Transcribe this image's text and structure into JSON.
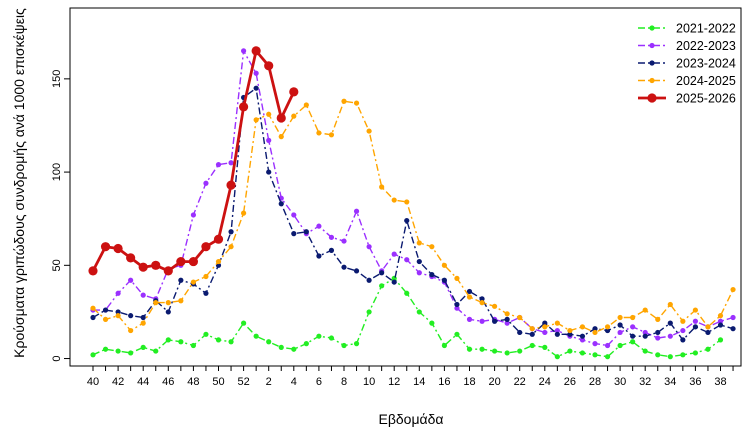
{
  "chart_data": {
    "type": "line",
    "title": "",
    "xlabel": "Εβδομάδα",
    "ylabel": "Κρούσματα γριπώδους συνδρομής ανά 1000 επισκέψεις",
    "ylim": [
      -4,
      188
    ],
    "yticks": [
      0,
      50,
      100,
      150
    ],
    "x_tick_labels": [
      "40",
      "42",
      "44",
      "46",
      "48",
      "50",
      "52",
      "2",
      "4",
      "6",
      "8",
      "10",
      "12",
      "14",
      "16",
      "18",
      "20",
      "22",
      "24",
      "26",
      "28",
      "30",
      "32",
      "34",
      "36",
      "38"
    ],
    "weeks": [
      40,
      41,
      42,
      43,
      44,
      45,
      46,
      47,
      48,
      49,
      50,
      51,
      52,
      1,
      2,
      3,
      4,
      5,
      6,
      7,
      8,
      9,
      10,
      11,
      12,
      13,
      14,
      15,
      16,
      17,
      18,
      19,
      20,
      21,
      22,
      23,
      24,
      25,
      26,
      27,
      28,
      29,
      30,
      31,
      32,
      33,
      34,
      35,
      36,
      37,
      38,
      39
    ],
    "legend_position": "top-right",
    "series": [
      {
        "name": "2021-2022",
        "color": "#22ee22",
        "dash": "dashdot",
        "thick": false,
        "values": [
          2,
          5,
          4,
          3,
          6,
          4,
          10,
          9,
          7,
          13,
          10,
          9,
          19,
          12,
          9,
          6,
          5,
          8,
          12,
          11,
          7,
          8,
          25,
          39,
          43,
          35,
          25,
          19,
          7,
          13,
          5,
          5,
          4,
          3,
          4,
          7,
          6,
          1,
          4,
          3,
          2,
          1,
          7,
          9,
          4,
          2,
          1,
          2,
          3,
          5,
          10,
          null
        ]
      },
      {
        "name": "2022-2023",
        "color": "#9b30ff",
        "dash": "dashdot",
        "thick": false,
        "values": [
          26,
          26,
          35,
          42,
          34,
          32,
          48,
          50,
          77,
          94,
          104,
          105,
          165,
          153,
          117,
          86,
          77,
          67,
          71,
          65,
          63,
          79,
          60,
          47,
          56,
          53,
          46,
          44,
          41,
          27,
          21,
          20,
          21,
          19,
          22,
          16,
          14,
          15,
          12,
          10,
          8,
          7,
          14,
          17,
          14,
          11,
          12,
          15,
          20,
          17,
          20,
          22
        ]
      },
      {
        "name": "2023-2024",
        "color": "#0a1a70",
        "dash": "dashdot",
        "thick": false,
        "values": [
          22,
          26,
          25,
          23,
          22,
          31,
          25,
          42,
          40,
          35,
          50,
          68,
          140,
          145,
          100,
          83,
          67,
          68,
          55,
          58,
          49,
          47,
          42,
          46,
          41,
          74,
          52,
          45,
          42,
          29,
          36,
          32,
          20,
          21,
          14,
          13,
          19,
          13,
          13,
          12,
          16,
          15,
          18,
          12,
          12,
          14,
          19,
          10,
          17,
          14,
          18,
          16
        ]
      },
      {
        "name": "2024-2025",
        "color": "#ffa500",
        "dash": "dashdot",
        "thick": false,
        "values": [
          27,
          21,
          23,
          15,
          19,
          30,
          30,
          31,
          41,
          44,
          52,
          60,
          78,
          128,
          131,
          119,
          130,
          136,
          121,
          120,
          138,
          137,
          122,
          92,
          85,
          84,
          62,
          60,
          50,
          43,
          33,
          30,
          28,
          24,
          22,
          16,
          17,
          19,
          15,
          17,
          14,
          17,
          22,
          22,
          26,
          21,
          29,
          20,
          26,
          17,
          23,
          37
        ]
      },
      {
        "name": "2025-2026",
        "color": "#cc1111",
        "dash": "solid",
        "thick": true,
        "values": [
          47,
          60,
          59,
          54,
          49,
          50,
          47,
          52,
          52,
          60,
          64,
          93,
          135,
          165,
          157,
          129,
          143,
          null,
          null,
          null,
          null,
          null,
          null,
          null,
          null,
          null,
          null,
          null,
          null,
          null,
          null,
          null,
          null,
          null,
          null,
          null,
          null,
          null,
          null,
          null,
          null,
          null,
          null,
          null,
          null,
          null,
          null,
          null,
          null,
          null,
          null,
          null
        ]
      }
    ]
  }
}
